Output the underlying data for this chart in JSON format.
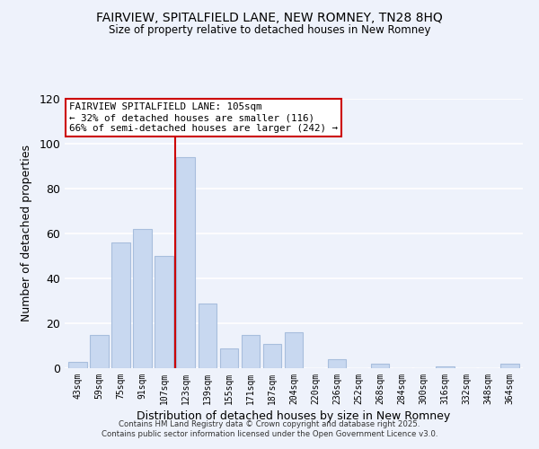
{
  "title": "FAIRVIEW, SPITALFIELD LANE, NEW ROMNEY, TN28 8HQ",
  "subtitle": "Size of property relative to detached houses in New Romney",
  "xlabel": "Distribution of detached houses by size in New Romney",
  "ylabel": "Number of detached properties",
  "bar_color": "#c8d8f0",
  "bar_edge_color": "#a8bedd",
  "categories": [
    "43sqm",
    "59sqm",
    "75sqm",
    "91sqm",
    "107sqm",
    "123sqm",
    "139sqm",
    "155sqm",
    "171sqm",
    "187sqm",
    "204sqm",
    "220sqm",
    "236sqm",
    "252sqm",
    "268sqm",
    "284sqm",
    "300sqm",
    "316sqm",
    "332sqm",
    "348sqm",
    "364sqm"
  ],
  "values": [
    3,
    15,
    56,
    62,
    50,
    94,
    29,
    9,
    15,
    11,
    16,
    0,
    4,
    0,
    2,
    0,
    0,
    1,
    0,
    0,
    2
  ],
  "ylim": [
    0,
    120
  ],
  "yticks": [
    0,
    20,
    40,
    60,
    80,
    100,
    120
  ],
  "vline_x": 4.5,
  "vline_color": "#cc0000",
  "annotation_title": "FAIRVIEW SPITALFIELD LANE: 105sqm",
  "annotation_line1": "← 32% of detached houses are smaller (116)",
  "annotation_line2": "66% of semi-detached houses are larger (242) →",
  "annotation_box_color": "#ffffff",
  "annotation_box_edge": "#cc0000",
  "footer1": "Contains HM Land Registry data © Crown copyright and database right 2025.",
  "footer2": "Contains public sector information licensed under the Open Government Licence v3.0.",
  "background_color": "#eef2fb",
  "grid_color": "#ffffff"
}
